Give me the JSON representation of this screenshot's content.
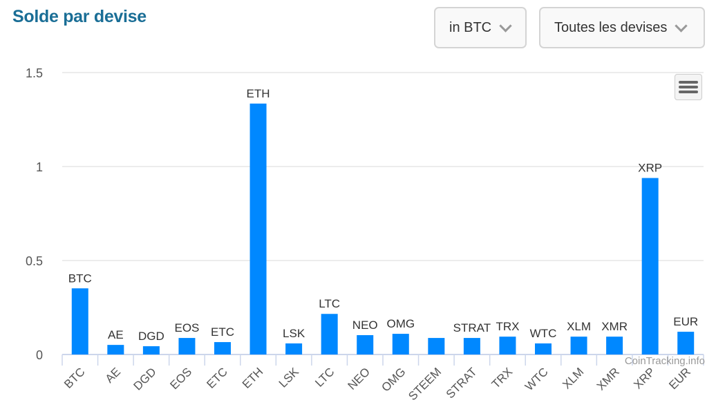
{
  "header": {
    "title": "Solde par devise",
    "unit_select": "in BTC",
    "currency_select": "Toutes les devises"
  },
  "chart_data": {
    "type": "bar",
    "title": "Solde par devise",
    "xlabel": "",
    "ylabel": "",
    "ylim": [
      0,
      1.5
    ],
    "yticks": [
      "0",
      "0.5",
      "1",
      "1.5"
    ],
    "grid": true,
    "legend": "none",
    "categories": [
      "BTC",
      "AE",
      "DGD",
      "EOS",
      "ETC",
      "ETH",
      "LSK",
      "LTC",
      "NEO",
      "OMG",
      "STEEM",
      "STRAT",
      "TRX",
      "WTC",
      "XLM",
      "XMR",
      "XRP",
      "EUR"
    ],
    "values": [
      0.352,
      0.051,
      0.044,
      0.088,
      0.066,
      1.335,
      0.059,
      0.216,
      0.103,
      0.11,
      0.088,
      0.088,
      0.095,
      0.059,
      0.095,
      0.095,
      0.939,
      0.121
    ],
    "data_labels": [
      "BTC",
      "AE",
      "DGD",
      "EOS",
      "ETC",
      "ETH",
      "LSK",
      "LTC",
      "NEO",
      "OMG",
      "",
      "STRAT",
      "TRX",
      "WTC",
      "XLM",
      "XMR",
      "XRP",
      "EUR"
    ],
    "color": "#0088ff",
    "credit": "CoinTracking.info"
  }
}
